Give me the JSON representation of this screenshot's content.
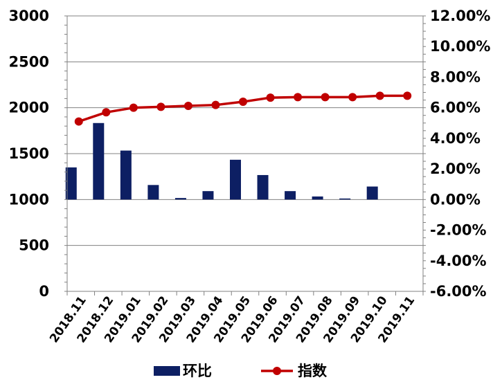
{
  "chart_data": {
    "type": "bar",
    "categories": [
      "2018.11",
      "2018.12",
      "2019.01",
      "2019.02",
      "2019.03",
      "2019.04",
      "2019.05",
      "2019.06",
      "2019.07",
      "2019.08",
      "2019.09",
      "2019.10",
      "2019.11"
    ],
    "series": [
      {
        "name": "环比",
        "type": "bar",
        "axis": "right",
        "values": [
          2.1,
          5.0,
          3.2,
          0.95,
          0.1,
          0.55,
          2.6,
          1.6,
          0.55,
          0.2,
          0.0,
          0.85,
          null
        ],
        "color": "#0d1f63"
      },
      {
        "name": "指数",
        "type": "line",
        "axis": "left",
        "values": [
          1850,
          1950,
          2000,
          2010,
          2020,
          2030,
          2065,
          2110,
          2115,
          2115,
          2115,
          2130,
          2130
        ],
        "color": "#c00000"
      }
    ],
    "y_left": {
      "ylim": [
        0,
        3000
      ],
      "ticks": [
        "0",
        "500",
        "1000",
        "1500",
        "2000",
        "2500",
        "3000"
      ]
    },
    "y_right": {
      "ylim": [
        -6,
        12
      ],
      "ticks": [
        "-6.00%",
        "-4.00%",
        "-2.00%",
        "0.00%",
        "2.00%",
        "4.00%",
        "6.00%",
        "8.00%",
        "10.00%",
        "12.00%"
      ]
    },
    "grid": true,
    "legend_position": "bottom"
  }
}
